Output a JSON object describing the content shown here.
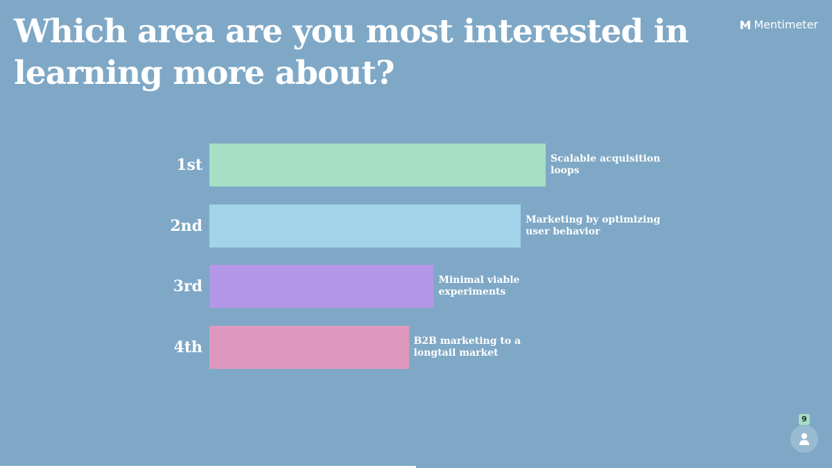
{
  "slide": {
    "title": "Which area are you most interested in learning more about?",
    "brand": "Mentimeter",
    "respondents": "9"
  },
  "colors": {
    "background": "#7fa8c6",
    "bar_1": "#a6dfc6",
    "bar_2": "#a1d4e8",
    "bar_3": "#b497e6",
    "bar_4": "#df98bd"
  },
  "chart_data": {
    "type": "bar",
    "orientation": "horizontal",
    "categories": [
      "1st",
      "2nd",
      "3rd",
      "4th"
    ],
    "labels": [
      "Scalable acquisition loops",
      "Marketing by optimizing user behavior",
      "Minimal viable experiments",
      "B2B marketing to a longtail market"
    ],
    "values": [
      100,
      92.6,
      66.7,
      59.3
    ],
    "unit": "percent of top item score",
    "grid": false,
    "legend": "none"
  }
}
